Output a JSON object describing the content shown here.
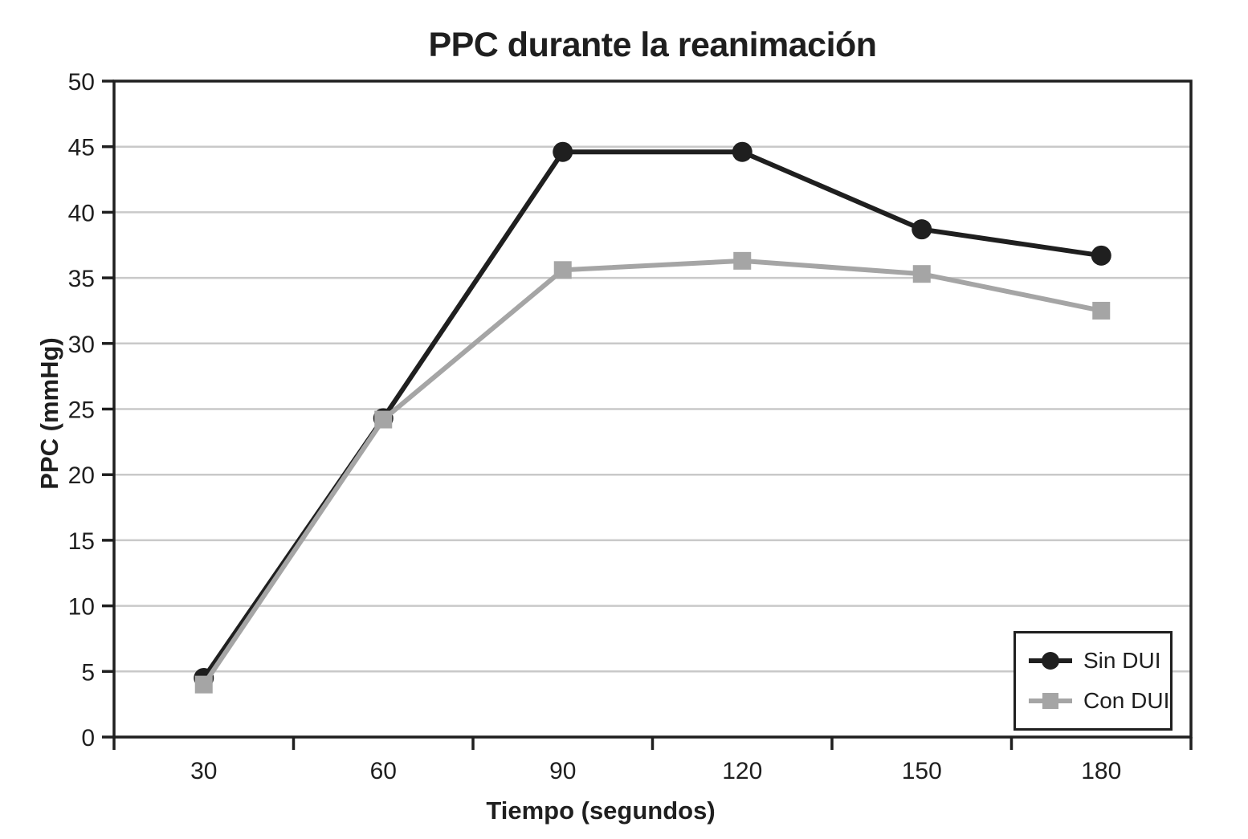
{
  "chart_data": {
    "type": "line",
    "title": "PPC durante la reanimación",
    "xlabel": "Tiempo (segundos)",
    "ylabel": "PPC (mmHg)",
    "categories": [
      "30",
      "60",
      "90",
      "120",
      "150",
      "180"
    ],
    "series": [
      {
        "name": "Sin DUI",
        "marker": "circle",
        "color": "#1f1f1f",
        "values": [
          4.5,
          24.3,
          44.6,
          44.6,
          38.7,
          36.7
        ]
      },
      {
        "name": "Con DUI",
        "marker": "square",
        "color": "#a5a5a5",
        "values": [
          4.0,
          24.2,
          35.6,
          36.3,
          35.3,
          32.5
        ]
      }
    ],
    "ylim": [
      0,
      50
    ],
    "ytick_step": 5,
    "yticks": [
      "0",
      "5",
      "10",
      "15",
      "20",
      "25",
      "30",
      "35",
      "40",
      "45",
      "50"
    ],
    "grid": true,
    "legend_position": "bottom-right",
    "colors": {
      "axis": "#1f1f1f",
      "gridline": "#c9c9c9",
      "background": "#ffffff"
    }
  }
}
